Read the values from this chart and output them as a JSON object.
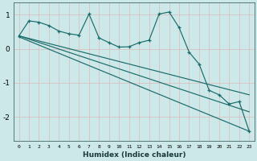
{
  "xlabel": "Humidex (Indice chaleur)",
  "background_color": "#cce8e8",
  "grid_color": "#aacccc",
  "line_color": "#1a6b6b",
  "plot_bg": "#cce8e8",
  "xlim": [
    -0.5,
    23.5
  ],
  "ylim": [
    -2.7,
    1.35
  ],
  "yticks": [
    -2,
    -1,
    0,
    1
  ],
  "xticks": [
    0,
    1,
    2,
    3,
    4,
    5,
    6,
    7,
    8,
    9,
    10,
    11,
    12,
    13,
    14,
    15,
    16,
    17,
    18,
    19,
    20,
    21,
    22,
    23
  ],
  "main_x": [
    0,
    1,
    2,
    3,
    4,
    5,
    6,
    7,
    8,
    9,
    10,
    11,
    12,
    13,
    14,
    15,
    16,
    17,
    18,
    19,
    20,
    21,
    22,
    23
  ],
  "main_y": [
    0.38,
    0.82,
    0.78,
    0.68,
    0.52,
    0.44,
    0.4,
    1.02,
    0.32,
    0.18,
    0.05,
    0.06,
    0.18,
    0.25,
    1.02,
    1.08,
    0.62,
    -0.1,
    -0.45,
    -1.22,
    -1.35,
    -1.62,
    -1.55,
    -2.42
  ],
  "line1_x": [
    0,
    23
  ],
  "line1_y": [
    0.38,
    -1.35
  ],
  "line2_x": [
    0,
    23
  ],
  "line2_y": [
    0.38,
    -1.85
  ],
  "line3_x": [
    0,
    23
  ],
  "line3_y": [
    0.35,
    -2.42
  ]
}
